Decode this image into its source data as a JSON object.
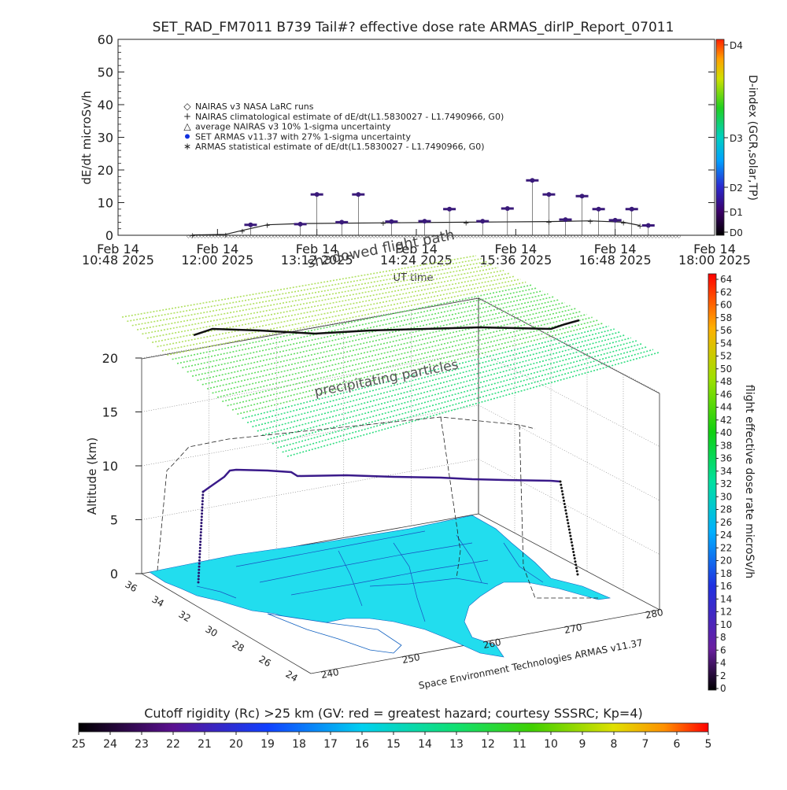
{
  "title": "SET_RAD_FM7011  B739 Tail#? effective dose rate ARMAS_dirIP_Report_07011",
  "chart_data": [
    {
      "type": "scatter",
      "title": "SET_RAD_FM7011  B739 Tail#? effective dose rate ARMAS_dirIP_Report_07011",
      "ylabel": "dE/dt microSv/h",
      "xlabel": "UT time",
      "ylim": [
        0,
        60
      ],
      "yticks": [
        "0",
        "10",
        "20",
        "30",
        "40",
        "50",
        "60"
      ],
      "xticks": [
        {
          "d": "Feb 14",
          "t": "10:48 2025"
        },
        {
          "d": "Feb 14",
          "t": "12:00 2025"
        },
        {
          "d": "Feb 14",
          "t": "13:12 2025"
        },
        {
          "d": "Feb 14",
          "t": "14:24 2025"
        },
        {
          "d": "Feb 14",
          "t": "15:36 2025"
        },
        {
          "d": "Feb 14",
          "t": "16:48 2025"
        },
        {
          "d": "Feb 14",
          "t": "18:00 2025"
        }
      ],
      "legend": [
        {
          "marker": "diamond",
          "label": "NAIRAS v3 NASA LaRC runs"
        },
        {
          "marker": "plus",
          "label": "NAIRAS climatological estimate of dE/dt(L1.5830027 - L1.7490966, G0)"
        },
        {
          "marker": "triangle",
          "label": "average NAIRAS v3 10% 1-sigma uncertainty"
        },
        {
          "marker": "dot",
          "label": "SET ARMAS v11.37 with 27% 1-sigma uncertainty"
        },
        {
          "marker": "asterisk",
          "label": "ARMAS statistical estimate of dE/dt(L1.5830027 - L1.7490966, G0)"
        }
      ],
      "colorbar": {
        "label": "D-index (GCR,solar,TP)",
        "ticks": [
          "D4",
          "D3",
          "D2",
          "D1",
          "D0"
        ]
      },
      "series": [
        {
          "name": "NAIRAS climatological estimate of dE/dt(L1.5830027 - L1.7490966, G0)",
          "x_hours": [
            11.7,
            12.1,
            12.3,
            12.6,
            13.0,
            14.0,
            15.0,
            16.0,
            16.5,
            16.9,
            17.1
          ],
          "values": [
            0.1,
            0.3,
            1.5,
            3.2,
            3.6,
            3.8,
            4.0,
            4.2,
            4.4,
            4.0,
            3.0
          ]
        },
        {
          "name": "SET ARMAS v11.37 with 27% 1-sigma uncertainty",
          "x_hours": [
            12.4,
            13.0,
            13.2,
            13.5,
            13.7,
            14.1,
            14.5,
            14.8,
            15.2,
            15.5,
            15.8,
            16.0,
            16.2,
            16.4,
            16.6,
            16.8,
            17.0,
            17.2
          ],
          "values": [
            3.2,
            3.4,
            12.5,
            4.0,
            12.5,
            4.2,
            4.3,
            8.0,
            4.3,
            8.2,
            16.8,
            12.5,
            4.8,
            12.0,
            8.0,
            4.6,
            8.0,
            3.0
          ]
        }
      ]
    },
    {
      "type": "scatter",
      "title": "",
      "zlabel": "Altitude (km)",
      "zticks": [
        "0",
        "5",
        "10",
        "15",
        "20"
      ],
      "yticks": [
        "36",
        "34",
        "32",
        "30",
        "28",
        "26",
        "24"
      ],
      "xticks": [
        "240",
        "250",
        "260",
        "270",
        "280"
      ],
      "annotations": [
        "shadowed flight path",
        "precipitating particles"
      ],
      "credit": "Space Environment Technologies ARMAS v11.37",
      "colorbar": {
        "label": "flight effective dose rate microSv/h",
        "ticks": [
          "64",
          "62",
          "60",
          "58",
          "56",
          "54",
          "52",
          "50",
          "48",
          "46",
          "44",
          "42",
          "40",
          "38",
          "36",
          "34",
          "32",
          "30",
          "28",
          "26",
          "24",
          "22",
          "20",
          "18",
          "16",
          "14",
          "12",
          "10",
          "8",
          "6",
          "4",
          "2",
          "0"
        ]
      }
    },
    {
      "type": "heatmap",
      "title": "Cutoff rigidity (Rc) >25 km (GV: red = greatest hazard; courtesy SSSRC; Kp=4)",
      "ticks": [
        "25",
        "24",
        "23",
        "22",
        "21",
        "20",
        "19",
        "18",
        "17",
        "16",
        "15",
        "14",
        "13",
        "12",
        "11",
        "10",
        "9",
        "8",
        "7",
        "6",
        "5"
      ]
    }
  ]
}
